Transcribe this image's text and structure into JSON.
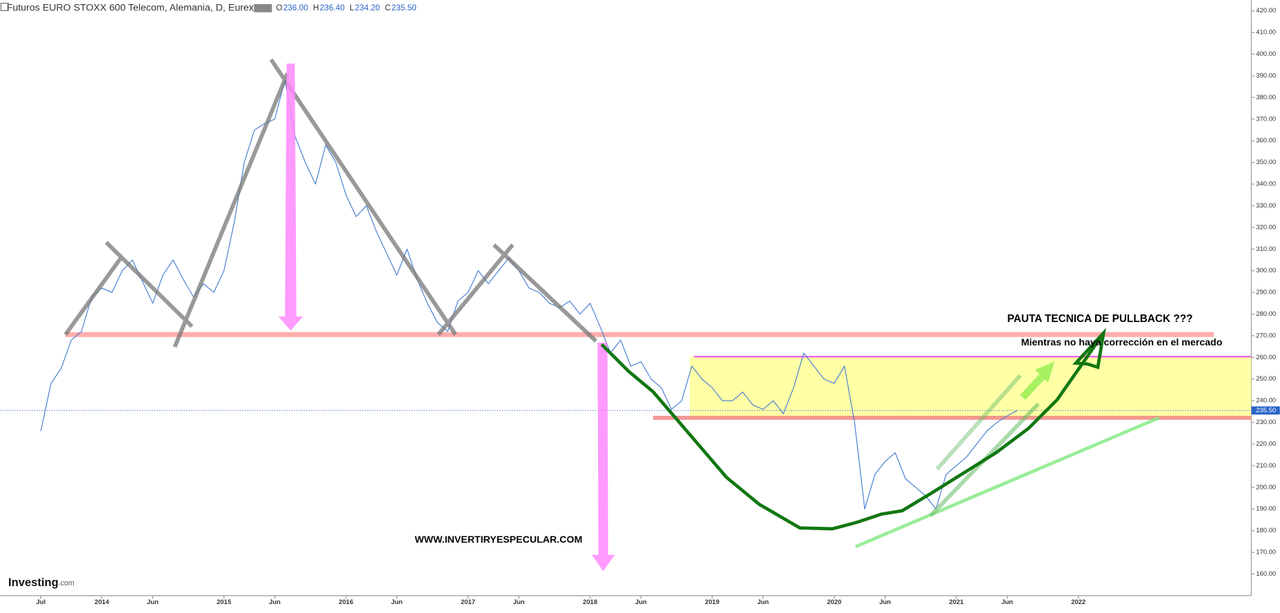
{
  "chart_data": {
    "type": "line",
    "title": "Futuros EURO STOXX 600 Telecom, Alemania, D, Eurex",
    "ohlc": [
      {
        "key": "O",
        "text": "236.00"
      },
      {
        "key": "H",
        "text": "236.40"
      },
      {
        "key": "L",
        "text": "234.20"
      },
      {
        "key": "C",
        "text": "235.50"
      }
    ],
    "last_price": {
      "value": 235.5,
      "label": "235.50"
    },
    "color": "#4a7fd4",
    "x": [
      "2013-07",
      "2013-08",
      "2013-09",
      "2013-10",
      "2013-11",
      "2013-12",
      "2014-01",
      "2014-02",
      "2014-03",
      "2014-04",
      "2014-05",
      "2014-06",
      "2014-07",
      "2014-08",
      "2014-09",
      "2014-10",
      "2014-11",
      "2014-12",
      "2015-01",
      "2015-02",
      "2015-03",
      "2015-04",
      "2015-05",
      "2015-06",
      "2015-07",
      "2015-08",
      "2015-09",
      "2015-10",
      "2015-11",
      "2015-12",
      "2016-01",
      "2016-02",
      "2016-03",
      "2016-04",
      "2016-05",
      "2016-06",
      "2016-07",
      "2016-08",
      "2016-09",
      "2016-10",
      "2016-11",
      "2016-12",
      "2017-01",
      "2017-02",
      "2017-03",
      "2017-04",
      "2017-05",
      "2017-06",
      "2017-07",
      "2017-08",
      "2017-09",
      "2017-10",
      "2017-11",
      "2017-12",
      "2018-01",
      "2018-02",
      "2018-03",
      "2018-04",
      "2018-05",
      "2018-06",
      "2018-07",
      "2018-08",
      "2018-09",
      "2018-10",
      "2018-11",
      "2018-12",
      "2019-01",
      "2019-02",
      "2019-03",
      "2019-04",
      "2019-05",
      "2019-06",
      "2019-07",
      "2019-08",
      "2019-09",
      "2019-10",
      "2019-11",
      "2019-12",
      "2020-01",
      "2020-02",
      "2020-03",
      "2020-04",
      "2020-05",
      "2020-06",
      "2020-07",
      "2020-08",
      "2020-09",
      "2020-10",
      "2020-11",
      "2020-12",
      "2021-01",
      "2021-02",
      "2021-03",
      "2021-04",
      "2021-05",
      "2021-06",
      "2021-07"
    ],
    "values": [
      226,
      248,
      255,
      268,
      272,
      288,
      292,
      290,
      300,
      305,
      295,
      285,
      298,
      305,
      296,
      288,
      294,
      290,
      300,
      322,
      350,
      365,
      368,
      370,
      388,
      362,
      350,
      340,
      358,
      350,
      335,
      325,
      330,
      318,
      308,
      298,
      310,
      296,
      285,
      276,
      272,
      286,
      290,
      300,
      294,
      300,
      306,
      300,
      292,
      290,
      285,
      283,
      286,
      280,
      285,
      274,
      262,
      268,
      256,
      258,
      250,
      246,
      236,
      240,
      256,
      250,
      246,
      240,
      240,
      244,
      238,
      236,
      240,
      234,
      246,
      262,
      256,
      250,
      248,
      256,
      230,
      190,
      206,
      212,
      216,
      204,
      200,
      196,
      190,
      206,
      210,
      214,
      220,
      226,
      230,
      233,
      235.5
    ],
    "xlim": [
      "2013-03",
      "2023-06"
    ],
    "xticks": [
      {
        "value": "2013-07",
        "label": "Jul"
      },
      {
        "value": "2014-01",
        "label": "2014"
      },
      {
        "value": "2014-06",
        "label": "Jun"
      },
      {
        "value": "2015-01",
        "label": "2015"
      },
      {
        "value": "2015-06",
        "label": "Jun"
      },
      {
        "value": "2016-01",
        "label": "2016"
      },
      {
        "value": "2016-06",
        "label": "Jun"
      },
      {
        "value": "2017-01",
        "label": "2017"
      },
      {
        "value": "2017-06",
        "label": "Jun"
      },
      {
        "value": "2018-01",
        "label": "2018"
      },
      {
        "value": "2018-06",
        "label": "Jun"
      },
      {
        "value": "2019-01",
        "label": "2019"
      },
      {
        "value": "2019-06",
        "label": "Jun"
      },
      {
        "value": "2020-01",
        "label": "2020"
      },
      {
        "value": "2020-06",
        "label": "Jun"
      },
      {
        "value": "2021-01",
        "label": "2021"
      },
      {
        "value": "2021-06",
        "label": "Jun"
      },
      {
        "value": "2022-01",
        "label": "2022"
      }
    ],
    "ylim": [
      150,
      425
    ],
    "yticks": [
      {
        "value": 160,
        "label": "160.00"
      },
      {
        "value": 170,
        "label": "170.00"
      },
      {
        "value": 180,
        "label": "180.00"
      },
      {
        "value": 190,
        "label": "190.00"
      },
      {
        "value": 200,
        "label": "200.00"
      },
      {
        "value": 210,
        "label": "210.00"
      },
      {
        "value": 220,
        "label": "220.00"
      },
      {
        "value": 230,
        "label": "230.00"
      },
      {
        "value": 240,
        "label": "240.00"
      },
      {
        "value": 250,
        "label": "250.00"
      },
      {
        "value": 260,
        "label": "260.00"
      },
      {
        "value": 270,
        "label": "270.00"
      },
      {
        "value": 280,
        "label": "280.00"
      },
      {
        "value": 290,
        "label": "290.00"
      },
      {
        "value": 300,
        "label": "300.00"
      },
      {
        "value": 310,
        "label": "310.00"
      },
      {
        "value": 320,
        "label": "320.00"
      },
      {
        "value": 330,
        "label": "330.00"
      },
      {
        "value": 340,
        "label": "340.00"
      },
      {
        "value": 350,
        "label": "350.00"
      },
      {
        "value": 360,
        "label": "360.00"
      },
      {
        "value": 370,
        "label": "370.00"
      },
      {
        "value": 380,
        "label": "380.00"
      },
      {
        "value": 390,
        "label": "390.00"
      },
      {
        "value": 400,
        "label": "400.00"
      },
      {
        "value": 410,
        "label": "410.00"
      },
      {
        "value": 420,
        "label": "420.00"
      }
    ],
    "annotations": {
      "pattern": "PAUTA TECNICA DE PULLBACK ???",
      "condition": "Mientras no haya corrección en el mercado",
      "website": "WWW.INVERTIRYESPECULAR.COM"
    },
    "logo": "Investing",
    "logo_suffix": ".com"
  }
}
